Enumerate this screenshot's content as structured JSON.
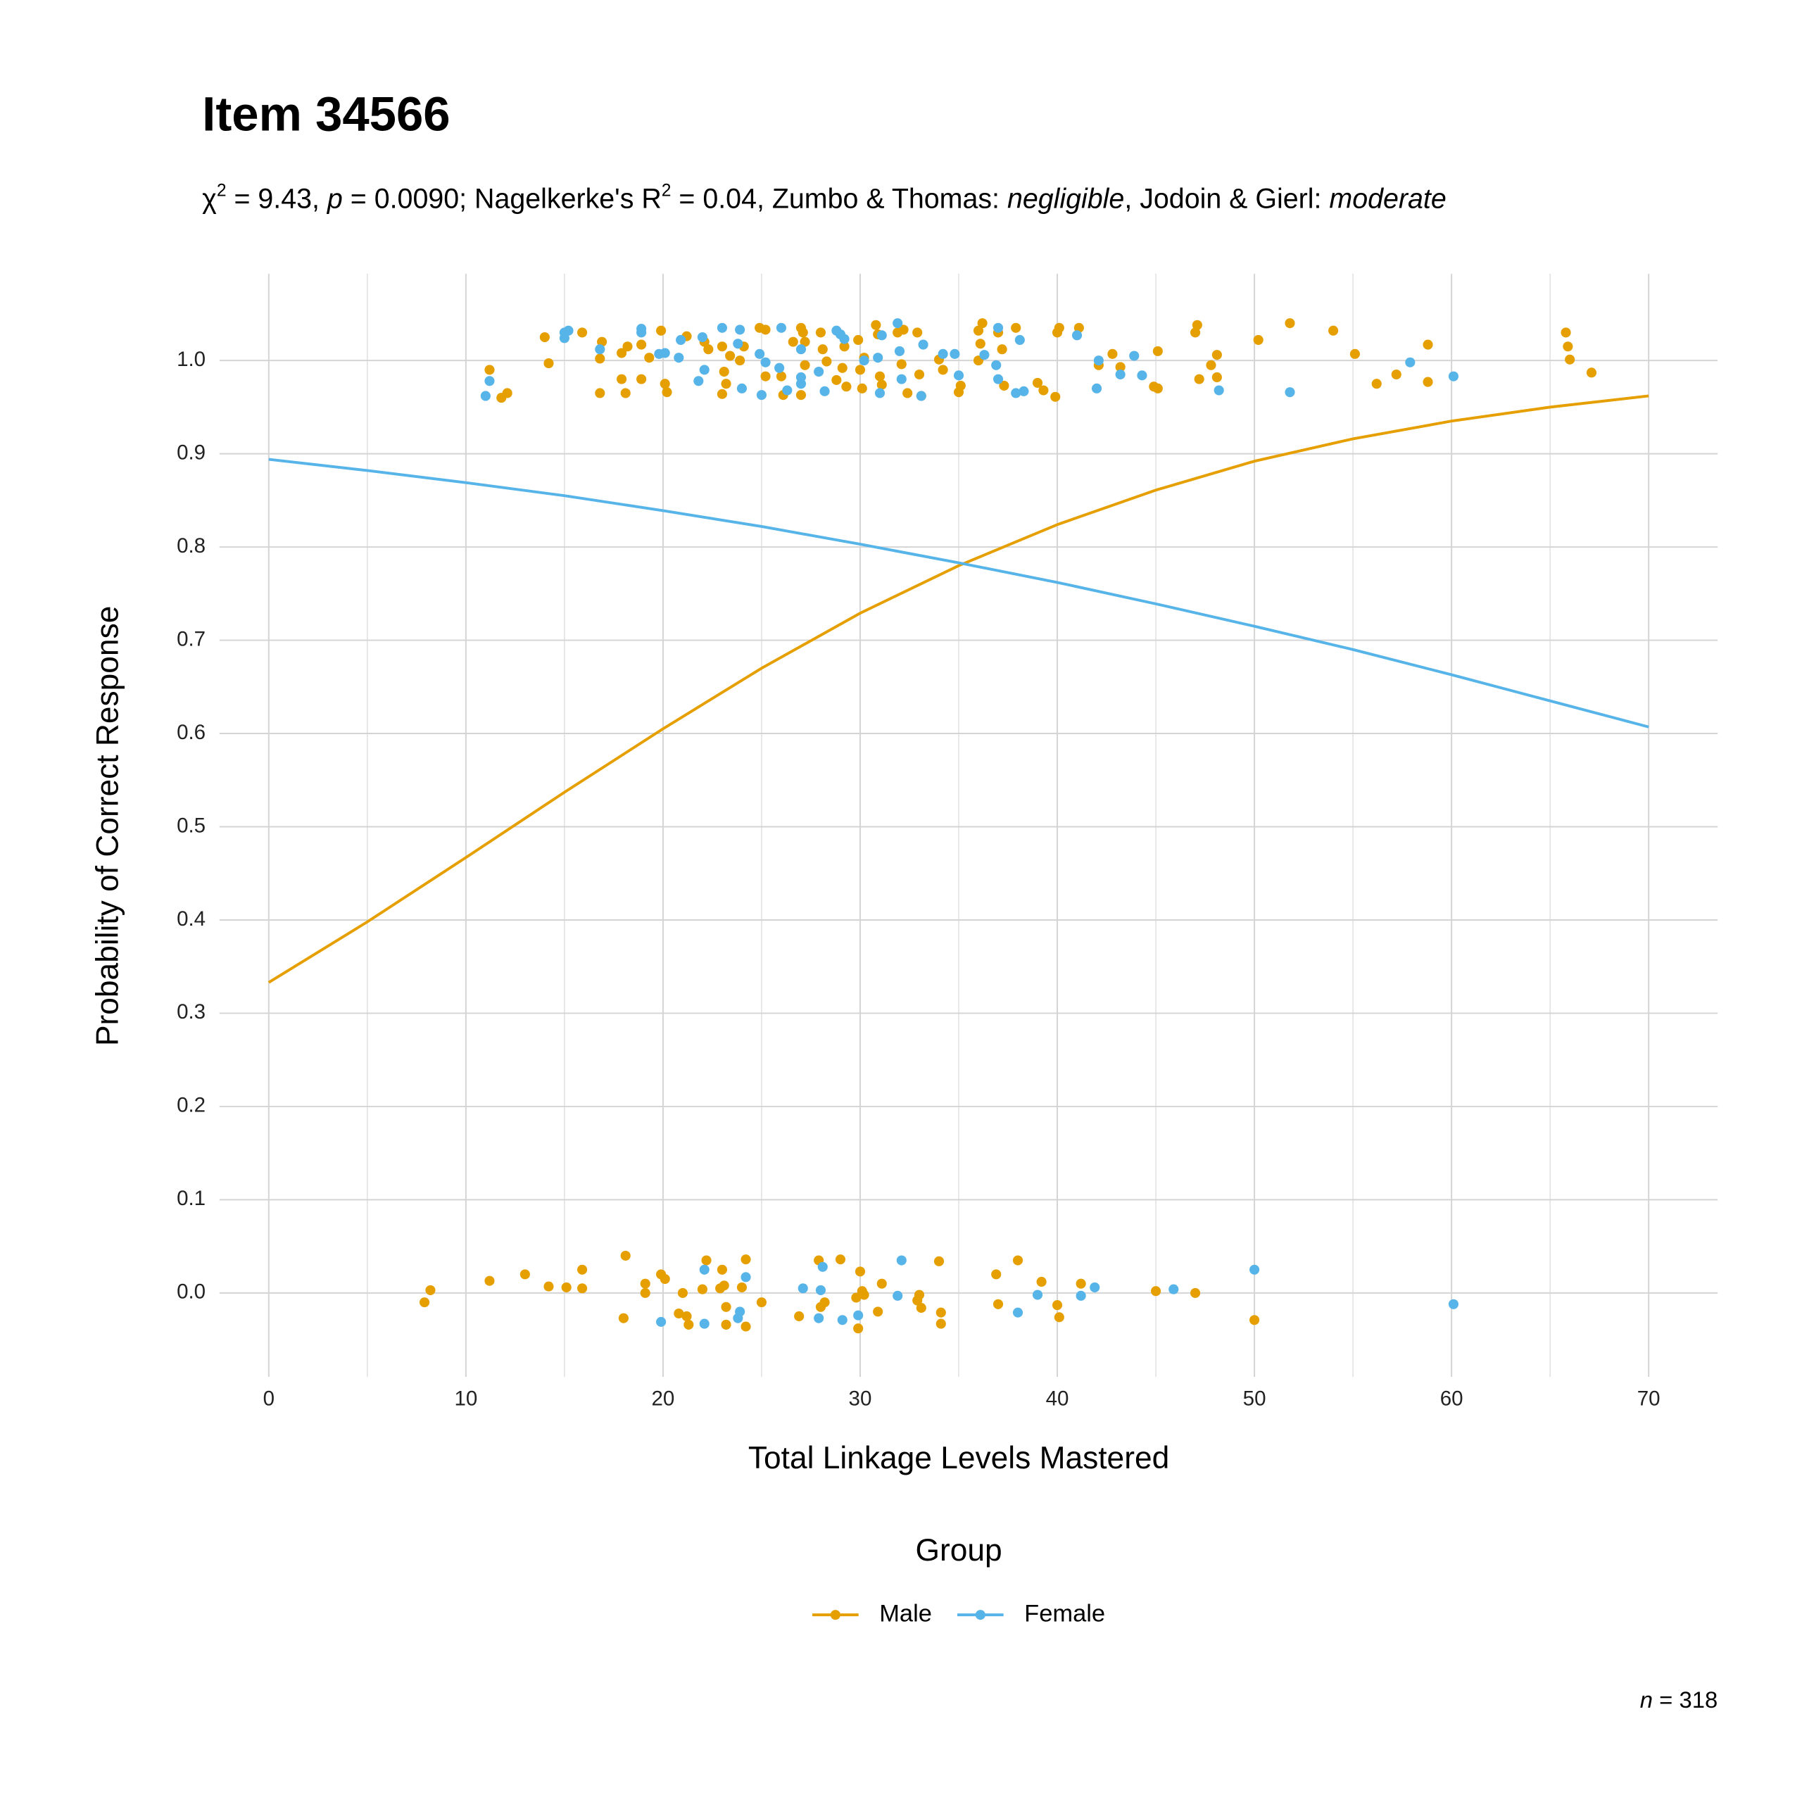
{
  "chart_data": {
    "type": "scatter",
    "title": "Item 34566",
    "subtitle_parts": [
      {
        "text": "χ",
        "style": "normal"
      },
      {
        "text": "2",
        "style": "sup"
      },
      {
        "text": " = 9.43, ",
        "style": "normal"
      },
      {
        "text": "p",
        "style": "italic"
      },
      {
        "text": " = 0.0090; Nagelkerke's R",
        "style": "normal"
      },
      {
        "text": "2",
        "style": "sup"
      },
      {
        "text": " = 0.04, Zumbo & Thomas: ",
        "style": "normal"
      },
      {
        "text": "negligible",
        "style": "italic"
      },
      {
        "text": ", Jodoin & Gierl: ",
        "style": "normal"
      },
      {
        "text": "moderate",
        "style": "italic"
      }
    ],
    "x_label": "Total Linkage Levels Mastered",
    "y_label": "Probability of Correct Response",
    "legend_title": "Group",
    "legend_position": "bottom",
    "note_parts": [
      {
        "text": "n",
        "style": "italic"
      },
      {
        "text": " = 318",
        "style": "normal"
      }
    ],
    "xlim": [
      -2.5,
      73.5
    ],
    "ylim": [
      -0.09,
      1.093
    ],
    "xticks": [
      0,
      10,
      20,
      30,
      40,
      50,
      60,
      70
    ],
    "x_minor_ticks": [
      5,
      15,
      25,
      35,
      45,
      55,
      65
    ],
    "yticks": [
      {
        "value": 0,
        "label": "0.0"
      },
      0.1,
      0.2,
      0.3,
      0.4,
      0.5,
      0.6,
      0.7,
      0.8,
      0.9,
      {
        "value": 1,
        "label": "1.0"
      }
    ],
    "grid": true,
    "series": [
      {
        "name": "Male",
        "color": "#E69F00",
        "x": [
          11.2,
          11.8,
          12.1,
          14.0,
          14.2,
          15.9,
          16.8,
          16.9,
          16.8,
          17.9,
          17.9,
          18.1,
          18.2,
          18.9,
          18.9,
          19.3,
          19.9,
          20.1,
          20.2,
          21.2,
          22.1,
          22.3,
          23.0,
          23.1,
          23.2,
          23.0,
          23.4,
          23.9,
          24.1,
          24.9,
          25.2,
          25.2,
          26.0,
          26.1,
          26.6,
          27.1,
          27.0,
          27.2,
          27.2,
          27.0,
          28.0,
          28.1,
          28.3,
          28.8,
          29.2,
          29.1,
          29.3,
          29.9,
          30.0,
          30.2,
          30.1,
          30.8,
          30.9,
          31.0,
          31.1,
          31.9,
          32.2,
          32.1,
          32.4,
          32.9,
          33.0,
          33.1,
          34.0,
          34.2,
          35.1,
          35.0,
          36.0,
          36.2,
          36.1,
          36.0,
          37.0,
          37.2,
          37.3,
          37.9,
          39.0,
          39.3,
          39.9,
          40.0,
          40.1,
          41.1,
          42.1,
          42.8,
          43.2,
          44.9,
          45.1,
          45.1,
          47.0,
          47.1,
          47.2,
          47.8,
          48.1,
          48.1,
          50.2,
          51.8,
          54.0,
          55.1,
          56.2,
          57.2,
          58.8,
          58.8,
          65.8,
          65.9,
          66.0,
          67.1,
          7.9,
          8.2,
          11.2,
          13.0,
          14.2,
          15.1,
          15.9,
          15.9,
          18.1,
          18.0,
          19.1,
          19.1,
          19.9,
          20.1,
          20.8,
          21.0,
          21.2,
          21.3,
          22.0,
          22.2,
          22.9,
          23.0,
          23.1,
          23.2,
          23.2,
          24.0,
          24.2,
          24.2,
          25.0,
          26.9,
          27.9,
          28.0,
          28.2,
          29.0,
          29.8,
          30.0,
          30.1,
          30.2,
          29.9,
          30.9,
          31.1,
          32.9,
          33.0,
          33.1,
          34.0,
          34.1,
          34.1,
          36.9,
          37.0,
          38.0,
          39.2,
          40.0,
          40.1,
          41.2,
          45.0,
          47.0,
          50.0
        ],
        "values": [
          0.99,
          0.96,
          0.965,
          1.025,
          0.997,
          1.03,
          0.965,
          1.02,
          1.002,
          1.008,
          0.98,
          0.965,
          1.015,
          1.017,
          0.98,
          1.003,
          1.032,
          0.975,
          0.966,
          1.026,
          1.02,
          1.012,
          1.015,
          0.988,
          0.975,
          0.964,
          1.005,
          1.0,
          1.015,
          1.035,
          1.033,
          0.983,
          0.983,
          0.963,
          1.02,
          1.03,
          1.035,
          1.02,
          0.995,
          0.963,
          1.03,
          1.012,
          0.999,
          0.979,
          1.015,
          0.992,
          0.972,
          1.022,
          0.99,
          1.003,
          0.97,
          1.038,
          1.028,
          0.983,
          0.974,
          1.03,
          1.033,
          0.996,
          0.965,
          1.03,
          0.985,
          0.962,
          1.001,
          0.99,
          0.973,
          0.966,
          1.032,
          1.04,
          1.018,
          1.0,
          1.03,
          1.012,
          0.973,
          1.035,
          0.976,
          0.968,
          0.961,
          1.03,
          1.035,
          1.035,
          0.995,
          1.007,
          0.993,
          0.972,
          0.97,
          1.01,
          1.03,
          1.038,
          0.98,
          0.995,
          1.006,
          0.982,
          1.022,
          1.04,
          1.032,
          1.007,
          0.975,
          0.985,
          1.017,
          0.977,
          1.03,
          1.015,
          1.001,
          0.987,
          -0.01,
          0.003,
          0.013,
          0.02,
          0.007,
          0.006,
          0.025,
          0.005,
          0.04,
          -0.027,
          0.01,
          0,
          0.02,
          0.015,
          -0.022,
          0,
          -0.025,
          -0.034,
          0.004,
          0.035,
          0.005,
          0.025,
          0.008,
          -0.015,
          -0.034,
          0.006,
          0.036,
          -0.036,
          -0.01,
          -0.025,
          0.035,
          -0.015,
          -0.01,
          0.036,
          -0.005,
          0.023,
          0.002,
          -0.002,
          -0.038,
          -0.02,
          0.01,
          -0.008,
          -0.002,
          -0.016,
          0.034,
          -0.021,
          -0.033,
          0.02,
          -0.012,
          0.035,
          0.012,
          -0.013,
          -0.026,
          0.01,
          0.002,
          0,
          -0.029
        ],
        "curve_x": [
          0,
          5,
          10,
          15,
          20,
          25,
          30,
          35,
          40,
          45,
          50,
          55,
          60,
          65,
          70
        ],
        "curve_values": [
          0.333,
          0.398,
          0.467,
          0.537,
          0.605,
          0.67,
          0.729,
          0.78,
          0.824,
          0.861,
          0.892,
          0.916,
          0.935,
          0.95,
          0.962
        ]
      },
      {
        "name": "Female",
        "color": "#56B4E9",
        "x": [
          11.0,
          11.2,
          15.0,
          15.0,
          15.2,
          16.8,
          18.9,
          18.9,
          19.8,
          20.1,
          20.8,
          20.9,
          21.8,
          22.0,
          22.1,
          23.0,
          23.9,
          23.8,
          24.0,
          24.9,
          25.2,
          25.0,
          26.0,
          25.9,
          26.3,
          27.0,
          27.0,
          27.0,
          27.9,
          28.2,
          28.8,
          29.0,
          29.2,
          30.2,
          30.9,
          31.0,
          31.1,
          31.9,
          32.0,
          32.1,
          33.2,
          33.1,
          34.2,
          34.8,
          35.0,
          36.3,
          36.9,
          37.0,
          37.0,
          37.9,
          38.1,
          38.3,
          41.0,
          42.0,
          42.1,
          43.2,
          43.9,
          44.3,
          48.2,
          51.8,
          57.9,
          60.1,
          19.9,
          22.1,
          22.1,
          23.9,
          23.8,
          24.2,
          27.1,
          27.9,
          28.0,
          28.1,
          29.1,
          29.9,
          31.9,
          32.1,
          38.0,
          39.0,
          41.2,
          41.9,
          45.9,
          50.0,
          60.1
        ],
        "values": [
          0.962,
          0.978,
          1.03,
          1.024,
          1.032,
          1.012,
          1.034,
          1.03,
          1.007,
          1.008,
          1.003,
          1.022,
          0.978,
          1.025,
          0.99,
          1.035,
          1.033,
          1.018,
          0.97,
          1.007,
          0.998,
          0.963,
          1.035,
          0.992,
          0.968,
          1.012,
          0.982,
          0.975,
          0.988,
          0.967,
          1.032,
          1.028,
          1.023,
          1.0,
          1.003,
          0.965,
          1.027,
          1.04,
          1.01,
          0.98,
          1.017,
          0.962,
          1.007,
          1.007,
          0.984,
          1.006,
          0.995,
          1.035,
          0.98,
          0.965,
          1.022,
          0.967,
          1.027,
          0.97,
          1.0,
          0.985,
          1.005,
          0.984,
          0.968,
          0.966,
          0.998,
          0.983,
          -0.031,
          0.025,
          -0.033,
          -0.02,
          -0.027,
          0.017,
          0.005,
          -0.027,
          0.003,
          0.028,
          -0.029,
          -0.024,
          -0.003,
          0.035,
          -0.021,
          -0.002,
          -0.003,
          0.006,
          0.004,
          0.025,
          -0.012
        ],
        "curve_x": [
          0,
          5,
          10,
          15,
          20,
          25,
          30,
          35,
          40,
          45,
          50,
          55,
          60,
          65,
          70
        ],
        "curve_values": [
          0.894,
          0.882,
          0.869,
          0.855,
          0.839,
          0.822,
          0.803,
          0.783,
          0.762,
          0.739,
          0.715,
          0.69,
          0.663,
          0.635,
          0.607
        ]
      }
    ]
  }
}
